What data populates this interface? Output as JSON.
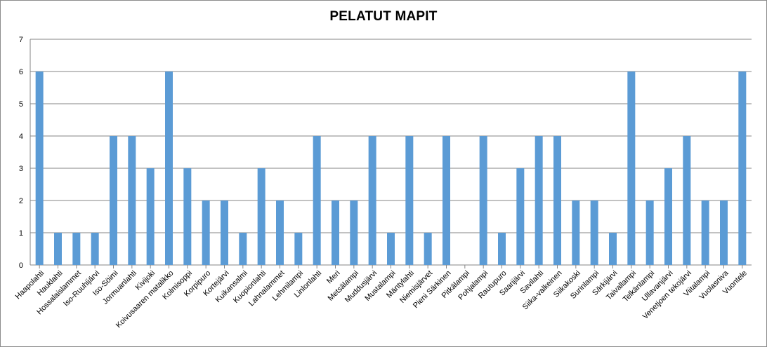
{
  "chart_data": {
    "type": "bar",
    "title": "PELATUT MAPIT",
    "xlabel": "",
    "ylabel": "",
    "ylim": [
      0,
      7
    ],
    "yticks": [
      0,
      1,
      2,
      3,
      4,
      5,
      6,
      7
    ],
    "grid": true,
    "legend": "none",
    "bar_color": "#5B9BD5",
    "grid_color": "#868686",
    "categories": [
      "Haapolahti",
      "Hauklahti",
      "Hossalaislammet",
      "Iso-Ruuhijärvi",
      "Iso-Söimi",
      "Jormuanlahti",
      "Kivijoki",
      "Koivusaaren matalikko",
      "Kolmisoppi",
      "Korpipuro",
      "Kortejärvi",
      "Kuikansalmi",
      "Kuopionlahti",
      "Lahnalammet",
      "Lehmilampi",
      "Linlonlahti",
      "Meri",
      "Metsälampi",
      "Muddusjärvi",
      "Mustalampi",
      "Mäntylahti",
      "Niemisjärvet",
      "Pieni Särkinen",
      "Pitkälampi",
      "Pohjalampi",
      "Rautupuro",
      "Saarijärvi",
      "Savilahti",
      "Siika-valkeinen",
      "Siikakoski",
      "Surinlampi",
      "Särkijärvi",
      "Taivallampi",
      "Telkänlampi",
      "Ullavanjärvi",
      "Venetjoen tekojärvi",
      "Viitalampi",
      "Vuolasniva",
      "Vuontele"
    ],
    "values": [
      6,
      1,
      1,
      1,
      4,
      4,
      3,
      6,
      3,
      2,
      2,
      1,
      3,
      2,
      1,
      4,
      2,
      2,
      4,
      1,
      4,
      1,
      4,
      0,
      4,
      1,
      3,
      4,
      4,
      2,
      2,
      1,
      6,
      2,
      3,
      4,
      2,
      2,
      6
    ]
  }
}
